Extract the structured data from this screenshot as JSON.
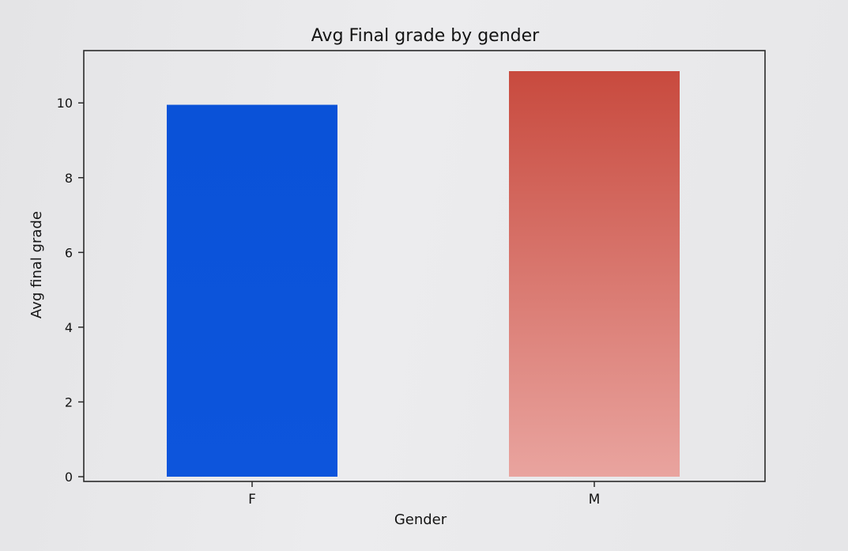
{
  "chart_data": {
    "type": "bar",
    "title": "Avg Final grade by gender",
    "xlabel": "Gender",
    "ylabel": "Avg final grade",
    "categories": [
      "F",
      "M"
    ],
    "values": [
      9.95,
      10.85
    ],
    "ylim": [
      0,
      11.4
    ],
    "yticks": [
      0,
      2,
      4,
      6,
      8,
      10
    ],
    "grid": false,
    "legend": "none",
    "colors": {
      "F": [
        "#0a52d8",
        "#0d55dc"
      ],
      "M": [
        "#c84a3e",
        "#e9a49f"
      ]
    }
  }
}
